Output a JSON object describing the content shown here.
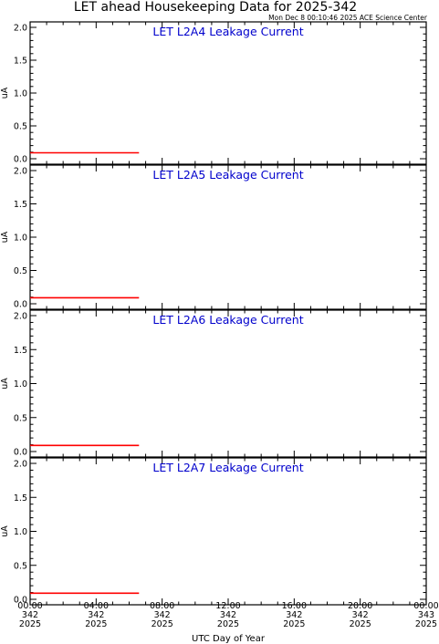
{
  "header": {
    "title": "LET ahead Housekeeping Data for 2025-342",
    "timestamp": "Mon Dec  8 00:10:46 2025 ACE Science Center"
  },
  "chart_data": [
    {
      "type": "line",
      "title": "LET L2A4 Leakage Current",
      "ylabel": "uA",
      "ylim": [
        0,
        2.0
      ],
      "y_ticks": [
        "0.0",
        "0.5",
        "1.0",
        "1.5",
        "2.0"
      ],
      "xlim": [
        0,
        24
      ],
      "series": [
        {
          "color": "#ff0000",
          "x": [
            0,
            6.6
          ],
          "y": [
            0.09,
            0.09
          ]
        }
      ]
    },
    {
      "type": "line",
      "title": "LET L2A5 Leakage Current",
      "ylabel": "uA",
      "ylim": [
        0,
        2.0
      ],
      "y_ticks": [
        "0.0",
        "0.5",
        "1.0",
        "1.5",
        "2.0"
      ],
      "xlim": [
        0,
        24
      ],
      "series": [
        {
          "color": "#ff0000",
          "x": [
            0,
            6.6
          ],
          "y": [
            0.09,
            0.09
          ]
        }
      ]
    },
    {
      "type": "line",
      "title": "LET L2A6 Leakage Current",
      "ylabel": "uA",
      "ylim": [
        0,
        2.0
      ],
      "y_ticks": [
        "0.0",
        "0.5",
        "1.0",
        "1.5",
        "2.0"
      ],
      "xlim": [
        0,
        24
      ],
      "series": [
        {
          "color": "#ff0000",
          "x": [
            0,
            6.6
          ],
          "y": [
            0.09,
            0.09
          ]
        }
      ]
    },
    {
      "type": "line",
      "title": "LET L2A7 Leakage Current",
      "ylabel": "uA",
      "ylim": [
        0,
        2.0
      ],
      "y_ticks": [
        "0.0",
        "0.5",
        "1.0",
        "1.5",
        "2.0"
      ],
      "xlim": [
        0,
        24
      ],
      "series": [
        {
          "color": "#ff0000",
          "x": [
            0,
            6.6
          ],
          "y": [
            0.09,
            0.09
          ]
        }
      ]
    }
  ],
  "x_axis": {
    "label": "UTC Day of Year",
    "ticks": [
      {
        "time": "00:00",
        "doy": "342",
        "year": "2025"
      },
      {
        "time": "04:00",
        "doy": "342",
        "year": "2025"
      },
      {
        "time": "08:00",
        "doy": "342",
        "year": "2025"
      },
      {
        "time": "12:00",
        "doy": "342",
        "year": "2025"
      },
      {
        "time": "16:00",
        "doy": "342",
        "year": "2025"
      },
      {
        "time": "20:00",
        "doy": "342",
        "year": "2025"
      },
      {
        "time": "00:00",
        "doy": "343",
        "year": "2025"
      }
    ]
  }
}
